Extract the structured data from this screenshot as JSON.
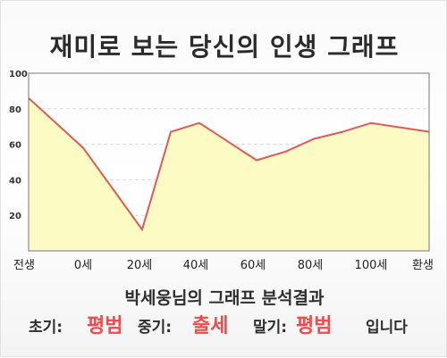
{
  "chart_data": {
    "type": "area",
    "title": "재미로 보는 당신의 인생 그래프",
    "x_labels": [
      "전생",
      "0세",
      "20세",
      "40세",
      "60세",
      "80세",
      "100세",
      "환생"
    ],
    "x": [
      "전생",
      "0세",
      "",
      "20세",
      "",
      "40세",
      "60세",
      "",
      "80세",
      "100세",
      "환생"
    ],
    "values": [
      86,
      58,
      12,
      67,
      72,
      51,
      56,
      63,
      67,
      72,
      67
    ],
    "y_ticks": [
      20,
      40,
      60,
      80,
      100
    ],
    "ylim": [
      0,
      100
    ],
    "grid": true,
    "line_color": "#e05a5a",
    "fill_color": "#fdfbc4"
  },
  "summary": "박세웅님의 그래프 분석결과",
  "result": {
    "early_label": "초기:",
    "early_value": "평범",
    "middle_label": "중기:",
    "middle_value": "출세",
    "late_label": "말기:",
    "late_value": "평범",
    "suffix": "입니다"
  },
  "colors": {
    "highlight": "#ee4b4b",
    "text": "#2e2e2e"
  }
}
